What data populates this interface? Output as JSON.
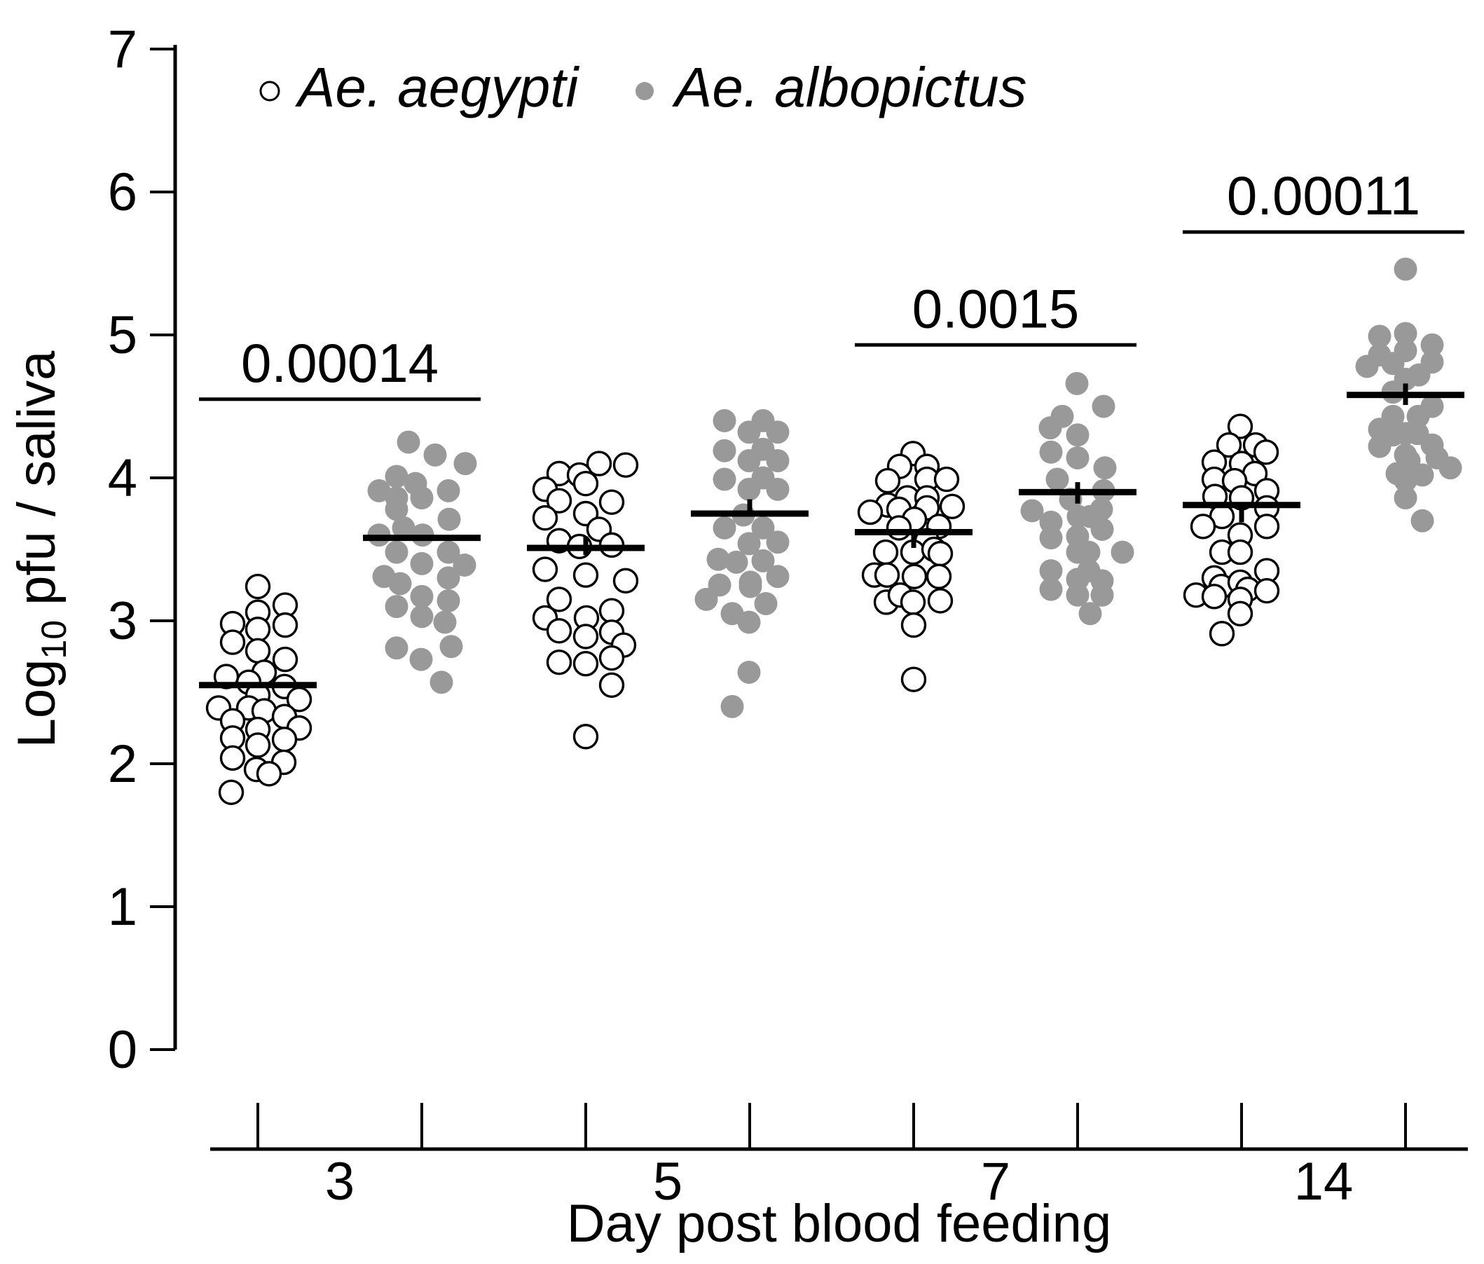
{
  "figure": {
    "background": "#ffffff",
    "ink_color": "#000000",
    "gray_point_color": "#999999",
    "open_point_fill": "#ffffff"
  },
  "legend": {
    "items": [
      {
        "label": "Ae. aegypti",
        "marker": "open-circle"
      },
      {
        "label": "Ae. albopictus",
        "marker": "filled-gray-circle"
      }
    ]
  },
  "chart_data": {
    "type": "scatter",
    "subtype": "grouped-strip-plot-with-median-bars",
    "title": "",
    "xlabel": "Day post blood feeding",
    "ylabel": "Log10 pfu / saliva",
    "ylabel_parts": {
      "base": "Log",
      "subscript": "10",
      "rest": " pfu / saliva"
    },
    "ylim": [
      0,
      7
    ],
    "yticks": [
      0,
      1,
      2,
      3,
      4,
      5,
      6,
      7
    ],
    "x_categories": [
      "3",
      "5",
      "7",
      "14"
    ],
    "grid": "off",
    "legend_position": "top-left-inside",
    "groups": [
      {
        "day": "3",
        "species": "Ae. aegypti",
        "style": "open",
        "median": 2.55,
        "whisker": null,
        "points": [
          [
            0,
            3.24
          ],
          [
            39,
            3.11
          ],
          [
            0,
            3.06
          ],
          [
            -36,
            2.98
          ],
          [
            39,
            2.97
          ],
          [
            0,
            2.94
          ],
          [
            -36,
            2.85
          ],
          [
            0,
            2.79
          ],
          [
            39,
            2.73
          ],
          [
            9,
            2.64
          ],
          [
            -45,
            2.61
          ],
          [
            -13,
            2.57
          ],
          [
            38,
            2.54
          ],
          [
            0,
            2.48
          ],
          [
            59,
            2.45
          ],
          [
            -56,
            2.39
          ],
          [
            -13,
            2.39
          ],
          [
            9,
            2.37
          ],
          [
            38,
            2.33
          ],
          [
            -36,
            2.3
          ],
          [
            59,
            2.25
          ],
          [
            0,
            2.24
          ],
          [
            -36,
            2.18
          ],
          [
            38,
            2.17
          ],
          [
            0,
            2.13
          ],
          [
            -36,
            2.04
          ],
          [
            37,
            2.01
          ],
          [
            -2,
            1.96
          ],
          [
            16,
            1.93
          ],
          [
            -38,
            1.8
          ]
        ]
      },
      {
        "day": "3",
        "species": "Ae. albopictus",
        "style": "gray",
        "median": 3.58,
        "whisker": null,
        "points": [
          [
            -19,
            4.25
          ],
          [
            19,
            4.16
          ],
          [
            62,
            4.1
          ],
          [
            -36,
            4.01
          ],
          [
            -9,
            3.96
          ],
          [
            -61,
            3.91
          ],
          [
            38,
            3.91
          ],
          [
            -36,
            3.86
          ],
          [
            0,
            3.86
          ],
          [
            -36,
            3.78
          ],
          [
            39,
            3.71
          ],
          [
            -26,
            3.65
          ],
          [
            -61,
            3.6
          ],
          [
            1,
            3.6
          ],
          [
            -36,
            3.48
          ],
          [
            38,
            3.48
          ],
          [
            0,
            3.4
          ],
          [
            61,
            3.39
          ],
          [
            -54,
            3.31
          ],
          [
            38,
            3.3
          ],
          [
            -31,
            3.26
          ],
          [
            0,
            3.17
          ],
          [
            38,
            3.14
          ],
          [
            -36,
            3.1
          ],
          [
            0,
            3.03
          ],
          [
            33,
            2.99
          ],
          [
            -36,
            2.81
          ],
          [
            42,
            2.82
          ],
          [
            -1,
            2.73
          ],
          [
            28,
            2.57
          ]
        ]
      },
      {
        "day": "5",
        "species": "Ae. aegypti",
        "style": "open",
        "median": 3.51,
        "whisker": [
          3.46,
          3.59
        ],
        "points": [
          [
            19,
            4.1
          ],
          [
            57,
            4.09
          ],
          [
            -38,
            4.03
          ],
          [
            -9,
            4.02
          ],
          [
            0,
            3.96
          ],
          [
            -58,
            3.92
          ],
          [
            -38,
            3.84
          ],
          [
            37,
            3.83
          ],
          [
            0,
            3.75
          ],
          [
            -58,
            3.72
          ],
          [
            19,
            3.64
          ],
          [
            -38,
            3.56
          ],
          [
            -9,
            3.52
          ],
          [
            37,
            3.53
          ],
          [
            -58,
            3.36
          ],
          [
            0,
            3.32
          ],
          [
            57,
            3.28
          ],
          [
            -38,
            3.15
          ],
          [
            -58,
            3.02
          ],
          [
            1,
            3.02
          ],
          [
            37,
            3.07
          ],
          [
            -38,
            2.93
          ],
          [
            0,
            2.89
          ],
          [
            37,
            2.92
          ],
          [
            54,
            2.83
          ],
          [
            37,
            2.74
          ],
          [
            -38,
            2.71
          ],
          [
            0,
            2.7
          ],
          [
            37,
            2.55
          ],
          [
            0,
            2.19
          ]
        ]
      },
      {
        "day": "5",
        "species": "Ae. albopictus",
        "style": "gray",
        "median": 3.75,
        "whisker": [
          3.75,
          3.85
        ],
        "points": [
          [
            -36,
            4.4
          ],
          [
            19,
            4.4
          ],
          [
            -1,
            4.32
          ],
          [
            40,
            4.32
          ],
          [
            -36,
            4.19
          ],
          [
            19,
            4.2
          ],
          [
            -1,
            4.12
          ],
          [
            40,
            4.12
          ],
          [
            -36,
            3.99
          ],
          [
            19,
            4.0
          ],
          [
            -1,
            3.92
          ],
          [
            40,
            3.92
          ],
          [
            -9,
            3.74
          ],
          [
            -36,
            3.65
          ],
          [
            19,
            3.65
          ],
          [
            -1,
            3.54
          ],
          [
            40,
            3.55
          ],
          [
            -45,
            3.43
          ],
          [
            -19,
            3.41
          ],
          [
            19,
            3.42
          ],
          [
            40,
            3.31
          ],
          [
            -43,
            3.25
          ],
          [
            1,
            3.27
          ],
          [
            1,
            3.24
          ],
          [
            -62,
            3.15
          ],
          [
            23,
            3.12
          ],
          [
            -25,
            3.05
          ],
          [
            -1,
            2.99
          ],
          [
            -1,
            2.64
          ],
          [
            -25,
            2.4
          ]
        ]
      },
      {
        "day": "7",
        "species": "Ae. aegypti",
        "style": "open",
        "median": 3.62,
        "whisker": [
          3.51,
          3.62
        ],
        "points": [
          [
            -1,
            4.17
          ],
          [
            -20,
            4.08
          ],
          [
            19,
            4.08
          ],
          [
            -37,
            3.98
          ],
          [
            19,
            3.99
          ],
          [
            47,
            3.99
          ],
          [
            -9,
            3.86
          ],
          [
            19,
            3.86
          ],
          [
            -37,
            3.81
          ],
          [
            -21,
            3.78
          ],
          [
            19,
            3.79
          ],
          [
            55,
            3.8
          ],
          [
            -62,
            3.76
          ],
          [
            1,
            3.71
          ],
          [
            -21,
            3.65
          ],
          [
            36,
            3.66
          ],
          [
            19,
            3.56
          ],
          [
            -1,
            3.48
          ],
          [
            29,
            3.5
          ],
          [
            -40,
            3.48
          ],
          [
            38,
            3.47
          ],
          [
            -56,
            3.32
          ],
          [
            -38,
            3.32
          ],
          [
            1,
            3.31
          ],
          [
            36,
            3.31
          ],
          [
            -39,
            3.13
          ],
          [
            -19,
            3.18
          ],
          [
            -1,
            3.13
          ],
          [
            38,
            3.14
          ],
          [
            0,
            2.97
          ],
          [
            0,
            2.59
          ]
        ]
      },
      {
        "day": "7",
        "species": "Ae. albopictus",
        "style": "gray",
        "median": 3.9,
        "whisker": [
          3.82,
          3.97
        ],
        "points": [
          [
            -1,
            4.66
          ],
          [
            37,
            4.5
          ],
          [
            -22,
            4.43
          ],
          [
            -39,
            4.35
          ],
          [
            0,
            4.3
          ],
          [
            -38,
            4.18
          ],
          [
            0,
            4.14
          ],
          [
            39,
            4.07
          ],
          [
            -29,
            3.99
          ],
          [
            37,
            3.91
          ],
          [
            -10,
            3.85
          ],
          [
            -65,
            3.77
          ],
          [
            34,
            3.78
          ],
          [
            -38,
            3.69
          ],
          [
            1,
            3.73
          ],
          [
            18,
            3.73
          ],
          [
            35,
            3.64
          ],
          [
            -38,
            3.58
          ],
          [
            0,
            3.59
          ],
          [
            0,
            3.48
          ],
          [
            16,
            3.48
          ],
          [
            64,
            3.48
          ],
          [
            -38,
            3.35
          ],
          [
            0,
            3.29
          ],
          [
            16,
            3.35
          ],
          [
            35,
            3.28
          ],
          [
            -38,
            3.22
          ],
          [
            0,
            3.18
          ],
          [
            35,
            3.18
          ],
          [
            18,
            3.05
          ]
        ]
      },
      {
        "day": "14",
        "species": "Ae. aegypti",
        "style": "open",
        "median": 3.81,
        "whisker": [
          3.69,
          3.81
        ],
        "points": [
          [
            -2,
            4.36
          ],
          [
            -18,
            4.23
          ],
          [
            20,
            4.23
          ],
          [
            35,
            4.18
          ],
          [
            -39,
            4.11
          ],
          [
            0,
            4.1
          ],
          [
            19,
            4.03
          ],
          [
            -39,
            3.99
          ],
          [
            -10,
            3.98
          ],
          [
            36,
            3.91
          ],
          [
            -38,
            3.87
          ],
          [
            0,
            3.86
          ],
          [
            36,
            3.79
          ],
          [
            -28,
            3.73
          ],
          [
            -55,
            3.66
          ],
          [
            36,
            3.66
          ],
          [
            -2,
            3.6
          ],
          [
            -28,
            3.48
          ],
          [
            -2,
            3.48
          ],
          [
            36,
            3.35
          ],
          [
            -39,
            3.3
          ],
          [
            -29,
            3.24
          ],
          [
            -2,
            3.27
          ],
          [
            9,
            3.22
          ],
          [
            36,
            3.21
          ],
          [
            -65,
            3.18
          ],
          [
            -39,
            3.17
          ],
          [
            -2,
            3.15
          ],
          [
            -2,
            3.05
          ],
          [
            -28,
            2.91
          ]
        ]
      },
      {
        "day": "14",
        "species": "Ae. albopictus",
        "style": "gray",
        "median": 4.58,
        "whisker": [
          4.51,
          4.66
        ],
        "points": [
          [
            0,
            5.46
          ],
          [
            -37,
            4.99
          ],
          [
            0,
            5.01
          ],
          [
            38,
            4.93
          ],
          [
            -37,
            4.86
          ],
          [
            0,
            4.89
          ],
          [
            -18,
            4.8
          ],
          [
            38,
            4.81
          ],
          [
            -55,
            4.78
          ],
          [
            19,
            4.72
          ],
          [
            0,
            4.69
          ],
          [
            -18,
            4.6
          ],
          [
            38,
            4.5
          ],
          [
            -18,
            4.43
          ],
          [
            18,
            4.43
          ],
          [
            -37,
            4.34
          ],
          [
            -18,
            4.3
          ],
          [
            0,
            4.31
          ],
          [
            17,
            4.31
          ],
          [
            -37,
            4.22
          ],
          [
            38,
            4.23
          ],
          [
            0,
            4.16
          ],
          [
            5,
            4.12
          ],
          [
            45,
            4.14
          ],
          [
            64,
            4.07
          ],
          [
            -12,
            4.03
          ],
          [
            24,
            4.02
          ],
          [
            0,
            3.98
          ],
          [
            0,
            3.86
          ],
          [
            24,
            3.7
          ]
        ]
      }
    ],
    "p_value_annotations": [
      {
        "label": "0.00014",
        "between_groups": [
          0,
          1
        ],
        "line_value": 4.55
      },
      {
        "label": "0.0015",
        "between_groups": [
          4,
          5
        ],
        "line_value": 4.93
      },
      {
        "label": "0.00011",
        "between_groups": [
          6,
          7
        ],
        "line_value": 5.72
      }
    ]
  }
}
